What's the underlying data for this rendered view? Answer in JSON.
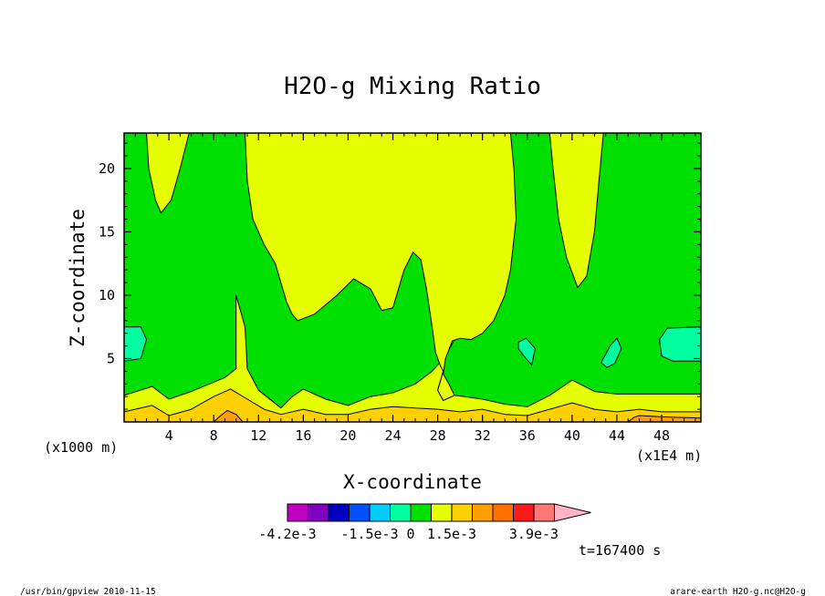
{
  "chart_data": {
    "type": "heatmap",
    "title": "H2O-g Mixing Ratio",
    "xlabel": "X-coordinate",
    "ylabel": "Z-coordinate",
    "x_unit_left": "(x1000 m)",
    "x_unit_right": "(x1E4 m)",
    "xlim": [
      0,
      51.5
    ],
    "ylim": [
      0,
      22.8
    ],
    "x_ticks": [
      4,
      8,
      12,
      16,
      20,
      24,
      28,
      32,
      36,
      40,
      44,
      48
    ],
    "x_tick_labels": [
      "4",
      "8",
      "12",
      "16",
      "20",
      "24",
      "28",
      "32",
      "36",
      "40",
      "44",
      "48"
    ],
    "y_ticks": [
      5,
      10,
      15,
      20
    ],
    "y_tick_labels": [
      "5",
      "10",
      "15",
      "20"
    ],
    "time_label": "t=167400 s",
    "colorbar": {
      "colors": [
        "#c000c0",
        "#8000c0",
        "#0000c0",
        "#0050ff",
        "#00ccff",
        "#00ffa0",
        "#00e000",
        "#e6ff00",
        "#ffd000",
        "#ffa000",
        "#ff7000",
        "#ff1a1a",
        "#ff7878"
      ],
      "extend_color": "#ffb4c8",
      "labels": [
        {
          "text": "-4.2e-3",
          "boundary": 0
        },
        {
          "text": "-1.5e-3",
          "boundary": 4
        },
        {
          "text": "0",
          "boundary": 6
        },
        {
          "text": "1.5e-3",
          "boundary": 8
        },
        {
          "text": "3.9e-3",
          "boundary": 12
        }
      ]
    },
    "regions": [
      {
        "name": "lower-yellow-band",
        "color": "#e6ff00",
        "points": [
          [
            0,
            2.1
          ],
          [
            2.5,
            2.8
          ],
          [
            4,
            1.8
          ],
          [
            6,
            2.4
          ],
          [
            9,
            3.5
          ],
          [
            10,
            4.2
          ],
          [
            10,
            10
          ],
          [
            10.8,
            7.5
          ],
          [
            11,
            4.2
          ],
          [
            12,
            2.5
          ],
          [
            14,
            1.1
          ],
          [
            15,
            2
          ],
          [
            16,
            2.6
          ],
          [
            18,
            1.8
          ],
          [
            20,
            1.3
          ],
          [
            22,
            2
          ],
          [
            24,
            2.3
          ],
          [
            26,
            3
          ],
          [
            27.5,
            4
          ],
          [
            28.5,
            5
          ],
          [
            29,
            5.7
          ],
          [
            29.5,
            6.5
          ],
          [
            28.5,
            6.5
          ],
          [
            28,
            5.7
          ],
          [
            28.3,
            4.7
          ],
          [
            28.5,
            4
          ],
          [
            28.3,
            3.4
          ],
          [
            28,
            2.5
          ],
          [
            28.5,
            1.7
          ],
          [
            29.5,
            2.1
          ],
          [
            32,
            1.8
          ],
          [
            34,
            1.4
          ],
          [
            36,
            1.2
          ],
          [
            38,
            2.1
          ],
          [
            40,
            3.3
          ],
          [
            42,
            2.4
          ],
          [
            44,
            2.2
          ],
          [
            48,
            2.2
          ],
          [
            51.5,
            2.2
          ],
          [
            51.5,
            0
          ],
          [
            0,
            0
          ]
        ]
      },
      {
        "name": "lower-orange-band",
        "color": "#ffd000",
        "points": [
          [
            0,
            0.8
          ],
          [
            2.5,
            1.3
          ],
          [
            4,
            0.5
          ],
          [
            6,
            1
          ],
          [
            8,
            2
          ],
          [
            9.5,
            2.6
          ],
          [
            11,
            1.8
          ],
          [
            12.5,
            1
          ],
          [
            14,
            0.6
          ],
          [
            16,
            1
          ],
          [
            18,
            0.6
          ],
          [
            20,
            0.6
          ],
          [
            22,
            1
          ],
          [
            24,
            1.2
          ],
          [
            26,
            1.1
          ],
          [
            28,
            1
          ],
          [
            30,
            0.8
          ],
          [
            32,
            1
          ],
          [
            34,
            0.6
          ],
          [
            36,
            0.5
          ],
          [
            38,
            1
          ],
          [
            40,
            1.5
          ],
          [
            42,
            1
          ],
          [
            44,
            0.8
          ],
          [
            46,
            1
          ],
          [
            48,
            0.8
          ],
          [
            51.5,
            0.8
          ],
          [
            51.5,
            0
          ],
          [
            0,
            0
          ]
        ]
      },
      {
        "name": "bottom-dark-orange-patch",
        "color": "#ffa000",
        "points": [
          [
            8,
            0
          ],
          [
            8.5,
            0.4
          ],
          [
            9.2,
            0.9
          ],
          [
            10,
            0.6
          ],
          [
            10.6,
            0
          ],
          [
            45,
            0
          ],
          [
            45.5,
            0.35
          ],
          [
            46,
            0.5
          ],
          [
            48,
            0.4
          ],
          [
            51.5,
            0.3
          ],
          [
            51.5,
            0
          ]
        ]
      },
      {
        "name": "upper-left-yellow-plume",
        "color": "#e6ff00",
        "points": [
          [
            2,
            22.8
          ],
          [
            2.2,
            20
          ],
          [
            2.8,
            17.5
          ],
          [
            3.3,
            16.5
          ],
          [
            4.2,
            17.5
          ],
          [
            5,
            20
          ],
          [
            5.8,
            22.8
          ]
        ]
      },
      {
        "name": "central-yellow-region",
        "color": "#e6ff00",
        "points": [
          [
            10.8,
            22.8
          ],
          [
            11,
            19
          ],
          [
            11.5,
            16
          ],
          [
            12.5,
            14
          ],
          [
            13.5,
            12.5
          ],
          [
            14,
            11
          ],
          [
            14.5,
            9.5
          ],
          [
            15,
            8.5
          ],
          [
            15.5,
            8
          ],
          [
            17,
            8.5
          ],
          [
            19,
            10
          ],
          [
            20.5,
            11.3
          ],
          [
            22,
            10.5
          ],
          [
            23,
            8.8
          ],
          [
            24,
            9
          ],
          [
            25,
            12
          ],
          [
            25.8,
            13.4
          ],
          [
            26.5,
            12.8
          ],
          [
            27,
            10.5
          ],
          [
            27.5,
            7.5
          ],
          [
            27.8,
            5.5
          ],
          [
            28.2,
            4.5
          ],
          [
            28.5,
            4
          ],
          [
            28.3,
            3.4
          ],
          [
            28,
            2.5
          ],
          [
            28.5,
            1.7
          ],
          [
            29.5,
            2.1
          ],
          [
            29,
            3
          ],
          [
            28.5,
            3.8
          ],
          [
            28.7,
            5
          ],
          [
            29.3,
            6.4
          ],
          [
            30,
            6.6
          ],
          [
            31,
            6.5
          ],
          [
            32,
            7
          ],
          [
            33,
            8
          ],
          [
            34,
            10
          ],
          [
            34.5,
            12
          ],
          [
            35,
            16
          ],
          [
            34.8,
            20
          ],
          [
            34.5,
            22.8
          ]
        ]
      },
      {
        "name": "right-yellow-plume",
        "color": "#e6ff00",
        "points": [
          [
            38,
            22.8
          ],
          [
            38.3,
            20
          ],
          [
            38.8,
            16
          ],
          [
            39.5,
            13
          ],
          [
            40.5,
            10.6
          ],
          [
            41.3,
            11.5
          ],
          [
            42,
            15
          ],
          [
            42.4,
            19
          ],
          [
            42.8,
            22.8
          ]
        ]
      },
      {
        "name": "cyan-patch-left",
        "color": "#00ffa0",
        "points": [
          [
            0,
            7.5
          ],
          [
            1.5,
            7.5
          ],
          [
            2,
            6.5
          ],
          [
            1.5,
            5
          ],
          [
            0,
            4.8
          ]
        ]
      },
      {
        "name": "cyan-patch-mid",
        "color": "#00ffa0",
        "points": [
          [
            35.2,
            6.3
          ],
          [
            35.9,
            6.6
          ],
          [
            36.7,
            5.8
          ],
          [
            36.4,
            4.5
          ],
          [
            35.7,
            5.2
          ],
          [
            35.2,
            5.8
          ]
        ]
      },
      {
        "name": "cyan-patch-right-inner",
        "color": "#00ffa0",
        "points": [
          [
            42.6,
            4.7
          ],
          [
            43.4,
            6
          ],
          [
            44,
            6.6
          ],
          [
            44.4,
            5.8
          ],
          [
            43.8,
            4.6
          ],
          [
            43.1,
            4.3
          ]
        ]
      },
      {
        "name": "cyan-patch-right-edge",
        "color": "#00ffa0",
        "points": [
          [
            51.5,
            7.5
          ],
          [
            48.5,
            7.4
          ],
          [
            47.8,
            6.5
          ],
          [
            48,
            5.2
          ],
          [
            49,
            4.8
          ],
          [
            51.5,
            4.8
          ]
        ]
      }
    ]
  },
  "footer": {
    "left": "/usr/bin/gpview  2010-11-15",
    "right": "arare-earth_H2O-g.nc@H2O-g"
  }
}
